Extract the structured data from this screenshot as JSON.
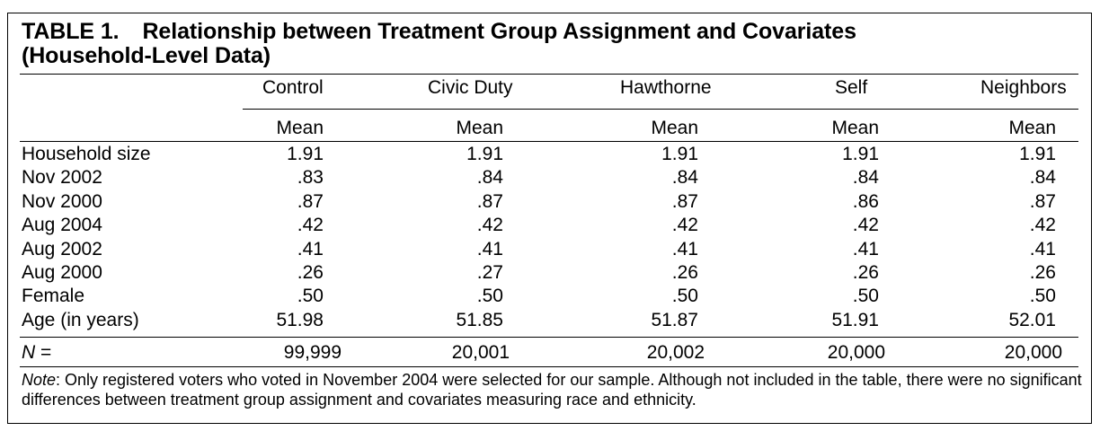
{
  "table": {
    "number": "TABLE 1.",
    "title_line1": "Relationship between Treatment Group Assignment and Covariates",
    "title_line2": "(Household-Level Data)",
    "groups": [
      "Control",
      "Civic Duty",
      "Hawthorne",
      "Self",
      "Neighbors"
    ],
    "stat_label": "Mean",
    "rows": [
      {
        "label": "Household size",
        "values": [
          "1.91",
          "1.91",
          "1.91",
          "1.91",
          "1.91"
        ]
      },
      {
        "label": "Nov 2002",
        "values": [
          ".83",
          ".84",
          ".84",
          ".84",
          ".84"
        ]
      },
      {
        "label": "Nov 2000",
        "values": [
          ".87",
          ".87",
          ".87",
          ".86",
          ".87"
        ]
      },
      {
        "label": "Aug 2004",
        "values": [
          ".42",
          ".42",
          ".42",
          ".42",
          ".42"
        ]
      },
      {
        "label": "Aug 2002",
        "values": [
          ".41",
          ".41",
          ".41",
          ".41",
          ".41"
        ]
      },
      {
        "label": "Aug 2000",
        "values": [
          ".26",
          ".27",
          ".26",
          ".26",
          ".26"
        ]
      },
      {
        "label": "Female",
        "values": [
          ".50",
          ".50",
          ".50",
          ".50",
          ".50"
        ]
      },
      {
        "label": "Age (in years)",
        "values": [
          "51.98",
          "51.85",
          "51.87",
          "51.91",
          "52.01"
        ]
      }
    ],
    "n_row": {
      "label": "N =",
      "values": [
        "99,999",
        "20,001",
        "20,002",
        "20,000",
        "20,000"
      ]
    },
    "note_label": "Note",
    "note_text": ":  Only registered voters who voted in November 2004 were selected for our sample. Although not included in the table, there were no significant differences between treatment group assignment and covariates measuring race and ethnicity."
  }
}
